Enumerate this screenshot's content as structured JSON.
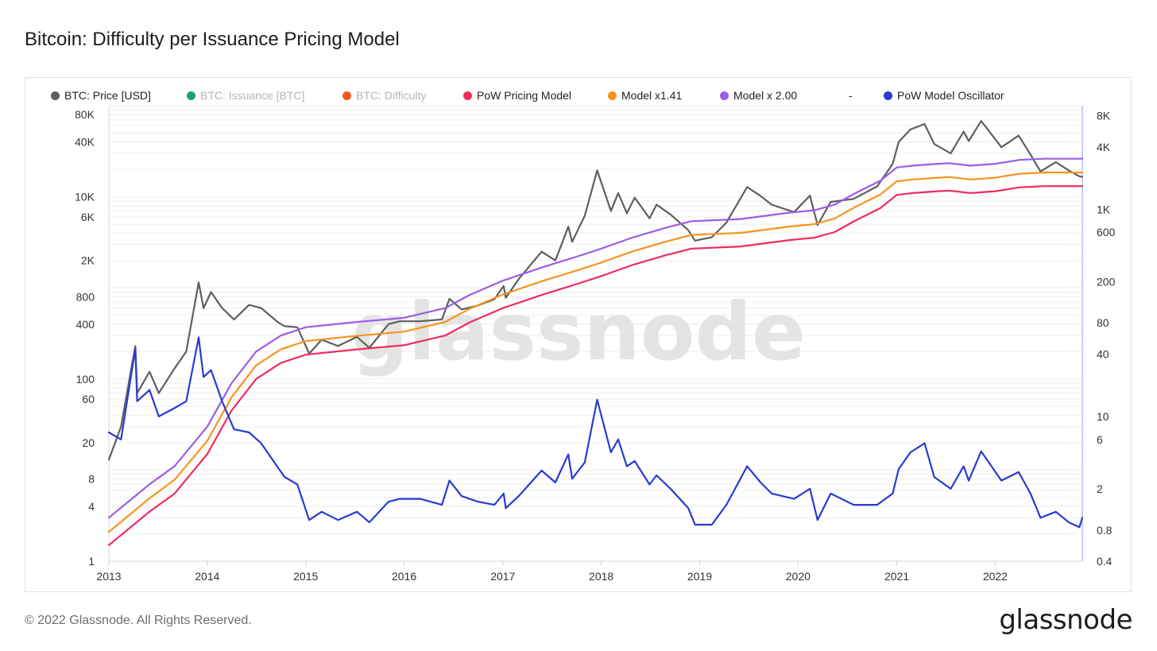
{
  "title": "Bitcoin: Difficulty per Issuance Pricing Model",
  "footer": {
    "copyright": "© 2022 Glassnode. All Rights Reserved.",
    "logo": "glassnode"
  },
  "watermark": "glassnode",
  "legend": [
    {
      "label": "BTC: Price [USD]",
      "color": "#5f5f5f",
      "muted": false
    },
    {
      "label": "BTC: Issuance [BTC]",
      "color": "#1aa37a",
      "muted": true
    },
    {
      "label": "BTC: Difficulty",
      "color": "#f5561d",
      "muted": true
    },
    {
      "label": "PoW Pricing Model",
      "color": "#ef2b5f",
      "muted": false
    },
    {
      "label": "Model x1.41",
      "color": "#f7941d",
      "muted": false
    },
    {
      "label": "Model x 2.00",
      "color": "#9b5de5",
      "muted": false
    },
    {
      "label": "-",
      "color": "",
      "muted": false
    },
    {
      "label": "PoW Model Oscillator",
      "color": "#2a3bd0",
      "muted": false
    }
  ],
  "chart_data": {
    "type": "line",
    "y_scale": "log",
    "x_range": [
      "2013-01-01",
      "2022-11-20"
    ],
    "x_ticks": [
      "2013",
      "2014",
      "2015",
      "2016",
      "2017",
      "2018",
      "2019",
      "2020",
      "2021",
      "2022"
    ],
    "y_left": {
      "range": [
        1,
        100000
      ],
      "ticks": [
        1,
        4,
        8,
        20,
        60,
        100,
        400,
        800,
        2000,
        6000,
        10000,
        40000,
        80000
      ],
      "tick_labels": [
        "1",
        "4",
        "8",
        "20",
        "60",
        "100",
        "400",
        "800",
        "2K",
        "6K",
        "10K",
        "40K",
        "80K"
      ]
    },
    "y_right": {
      "range": [
        0.4,
        10000
      ],
      "ticks": [
        0.4,
        0.8,
        2,
        6,
        10,
        40,
        80,
        200,
        600,
        1000,
        4000,
        8000
      ],
      "tick_labels": [
        "0.4",
        "0.8",
        "2",
        "6",
        "10",
        "40",
        "80",
        "200",
        "600",
        "1K",
        "4K",
        "8K"
      ]
    },
    "grid": true,
    "series": [
      {
        "name": "BTC: Price [USD]",
        "axis": "left",
        "color": "#5f5f5f",
        "x": [
          "2013-01-01",
          "2013-02-15",
          "2013-04-09",
          "2013-04-16",
          "2013-06-01",
          "2013-07-05",
          "2013-09-01",
          "2013-10-15",
          "2013-11-30",
          "2013-12-18",
          "2014-01-15",
          "2014-02-25",
          "2014-04-10",
          "2014-06-05",
          "2014-07-20",
          "2014-09-20",
          "2014-10-15",
          "2014-12-01",
          "2015-01-14",
          "2015-03-01",
          "2015-05-01",
          "2015-07-10",
          "2015-08-25",
          "2015-11-04",
          "2015-12-15",
          "2016-03-01",
          "2016-05-20",
          "2016-06-17",
          "2016-08-01",
          "2016-10-01",
          "2016-12-01",
          "2017-01-04",
          "2017-01-12",
          "2017-03-01",
          "2017-05-25",
          "2017-07-15",
          "2017-09-01",
          "2017-09-15",
          "2017-11-01",
          "2017-12-17",
          "2018-02-06",
          "2018-03-05",
          "2018-04-06",
          "2018-05-05",
          "2018-06-29",
          "2018-07-25",
          "2018-09-15",
          "2018-11-20",
          "2018-12-15",
          "2019-02-15",
          "2019-04-10",
          "2019-06-26",
          "2019-08-15",
          "2019-09-25",
          "2019-12-17",
          "2020-02-14",
          "2020-03-13",
          "2020-05-01",
          "2020-07-25",
          "2020-10-20",
          "2020-12-17",
          "2021-01-08",
          "2021-02-21",
          "2021-04-14",
          "2021-05-20",
          "2021-07-20",
          "2021-09-06",
          "2021-09-25",
          "2021-11-10",
          "2022-01-24",
          "2022-03-29",
          "2022-05-12",
          "2022-06-18",
          "2022-08-14",
          "2022-10-01",
          "2022-11-09",
          "2022-11-20"
        ],
        "y": [
          13,
          30,
          230,
          70,
          120,
          70,
          130,
          200,
          1150,
          600,
          900,
          600,
          450,
          650,
          600,
          420,
          380,
          370,
          190,
          270,
          230,
          290,
          220,
          400,
          430,
          430,
          450,
          760,
          580,
          640,
          750,
          1050,
          780,
          1250,
          2500,
          2000,
          4700,
          3200,
          6200,
          19500,
          7000,
          11000,
          6600,
          9800,
          5800,
          8200,
          6400,
          4300,
          3300,
          3600,
          5200,
          12800,
          10200,
          8200,
          6800,
          10300,
          4900,
          8800,
          9500,
          13000,
          23000,
          40000,
          55000,
          63000,
          38000,
          30000,
          52000,
          41000,
          68000,
          35000,
          47000,
          29000,
          19000,
          24000,
          19500,
          16800,
          16600
        ]
      },
      {
        "name": "PoW Pricing Model",
        "axis": "left",
        "color": "#ef2b5f",
        "x": [
          "2013-01-01",
          "2013-06-01",
          "2013-09-01",
          "2014-01-01",
          "2014-04-01",
          "2014-07-01",
          "2014-10-01",
          "2015-01-01",
          "2015-07-01",
          "2016-01-01",
          "2016-06-01",
          "2016-09-01",
          "2017-01-01",
          "2017-06-01",
          "2017-10-01",
          "2018-01-01",
          "2018-05-01",
          "2018-09-01",
          "2018-12-01",
          "2019-06-01",
          "2019-12-01",
          "2020-03-01",
          "2020-05-15",
          "2020-08-01",
          "2020-11-01",
          "2021-01-01",
          "2021-03-01",
          "2021-06-01",
          "2021-07-15",
          "2021-10-01",
          "2022-01-01",
          "2022-04-01",
          "2022-07-01",
          "2022-11-20"
        ],
        "y": [
          1.5,
          3.5,
          5.5,
          15,
          45,
          100,
          150,
          185,
          210,
          235,
          300,
          420,
          600,
          850,
          1100,
          1350,
          1800,
          2300,
          2700,
          2850,
          3350,
          3550,
          4100,
          5500,
          7500,
          10500,
          11000,
          11500,
          11700,
          11000,
          11500,
          12700,
          13100,
          13100
        ]
      },
      {
        "name": "Model x1.41",
        "axis": "left",
        "color": "#f7941d",
        "x": [
          "2013-01-01",
          "2013-06-01",
          "2013-09-01",
          "2014-01-01",
          "2014-04-01",
          "2014-07-01",
          "2014-10-01",
          "2015-01-01",
          "2015-07-01",
          "2016-01-01",
          "2016-06-01",
          "2016-09-01",
          "2017-01-01",
          "2017-06-01",
          "2017-10-01",
          "2018-01-01",
          "2018-05-01",
          "2018-09-01",
          "2018-12-01",
          "2019-06-01",
          "2019-12-01",
          "2020-03-01",
          "2020-05-15",
          "2020-08-01",
          "2020-11-01",
          "2021-01-01",
          "2021-03-01",
          "2021-06-01",
          "2021-07-15",
          "2021-10-01",
          "2022-01-01",
          "2022-04-01",
          "2022-07-01",
          "2022-11-20"
        ],
        "y": [
          2.1,
          4.9,
          7.8,
          21,
          63,
          141,
          212,
          261,
          296,
          331,
          423,
          592,
          846,
          1200,
          1550,
          1900,
          2540,
          3240,
          3810,
          4020,
          4720,
          5010,
          5780,
          7760,
          10600,
          14800,
          15500,
          16200,
          16500,
          15500,
          16200,
          17900,
          18500,
          18500
        ]
      },
      {
        "name": "Model x 2.00",
        "axis": "left",
        "color": "#9b5de5",
        "x": [
          "2013-01-01",
          "2013-06-01",
          "2013-09-01",
          "2014-01-01",
          "2014-04-01",
          "2014-07-01",
          "2014-10-01",
          "2015-01-01",
          "2015-07-01",
          "2016-01-01",
          "2016-06-01",
          "2016-09-01",
          "2017-01-01",
          "2017-06-01",
          "2017-10-01",
          "2018-01-01",
          "2018-05-01",
          "2018-09-01",
          "2018-12-01",
          "2019-06-01",
          "2019-12-01",
          "2020-03-01",
          "2020-05-15",
          "2020-08-01",
          "2020-11-01",
          "2021-01-01",
          "2021-03-01",
          "2021-06-01",
          "2021-07-15",
          "2021-10-01",
          "2022-01-01",
          "2022-04-01",
          "2022-07-01",
          "2022-11-20"
        ],
        "y": [
          3,
          7,
          11,
          30,
          90,
          200,
          300,
          370,
          420,
          470,
          600,
          840,
          1200,
          1700,
          2200,
          2700,
          3600,
          4600,
          5400,
          5700,
          6700,
          7100,
          8200,
          11000,
          15000,
          21000,
          22000,
          23000,
          23400,
          22000,
          23000,
          25400,
          26200,
          26200
        ]
      },
      {
        "name": "PoW Model Oscillator",
        "axis": "right",
        "color": "#2a3bd0",
        "x": [
          "2013-01-01",
          "2013-02-15",
          "2013-04-09",
          "2013-04-16",
          "2013-06-01",
          "2013-07-05",
          "2013-09-01",
          "2013-10-15",
          "2013-11-30",
          "2013-12-18",
          "2014-01-15",
          "2014-02-25",
          "2014-04-10",
          "2014-06-05",
          "2014-07-20",
          "2014-09-20",
          "2014-10-15",
          "2014-12-01",
          "2015-01-14",
          "2015-03-01",
          "2015-05-01",
          "2015-07-10",
          "2015-08-25",
          "2015-11-04",
          "2015-12-15",
          "2016-03-01",
          "2016-05-20",
          "2016-06-17",
          "2016-08-01",
          "2016-10-01",
          "2016-12-01",
          "2017-01-04",
          "2017-01-12",
          "2017-03-01",
          "2017-05-25",
          "2017-07-15",
          "2017-09-01",
          "2017-09-15",
          "2017-11-01",
          "2017-12-17",
          "2018-02-06",
          "2018-03-05",
          "2018-04-06",
          "2018-05-05",
          "2018-06-29",
          "2018-07-25",
          "2018-09-15",
          "2018-11-20",
          "2018-12-15",
          "2019-02-15",
          "2019-04-10",
          "2019-06-26",
          "2019-08-15",
          "2019-09-25",
          "2019-12-17",
          "2020-02-14",
          "2020-03-13",
          "2020-05-01",
          "2020-07-25",
          "2020-10-20",
          "2020-12-17",
          "2021-01-08",
          "2021-02-21",
          "2021-04-14",
          "2021-05-20",
          "2021-07-20",
          "2021-09-06",
          "2021-09-25",
          "2021-11-10",
          "2022-01-24",
          "2022-03-29",
          "2022-05-12",
          "2022-06-18",
          "2022-08-14",
          "2022-10-01",
          "2022-11-09",
          "2022-11-20"
        ],
        "y": [
          7,
          6,
          45,
          14,
          18,
          10,
          12,
          14,
          58,
          24,
          28,
          14,
          7.5,
          7,
          5.5,
          3.2,
          2.6,
          2.2,
          1,
          1.2,
          1,
          1.2,
          0.95,
          1.5,
          1.6,
          1.6,
          1.4,
          2.4,
          1.7,
          1.5,
          1.4,
          1.8,
          1.3,
          1.7,
          3,
          2.3,
          4.3,
          2.5,
          3.6,
          14.5,
          4.5,
          6,
          3.3,
          3.7,
          2.2,
          2.7,
          2,
          1.3,
          0.9,
          0.9,
          1.4,
          3.3,
          2.3,
          1.8,
          1.6,
          2,
          1,
          1.8,
          1.4,
          1.4,
          1.8,
          3.1,
          4.5,
          5.5,
          2.6,
          2,
          3.3,
          2.4,
          4.6,
          2.4,
          2.9,
          1.8,
          1.05,
          1.2,
          0.95,
          0.85,
          1.05
        ]
      }
    ]
  }
}
